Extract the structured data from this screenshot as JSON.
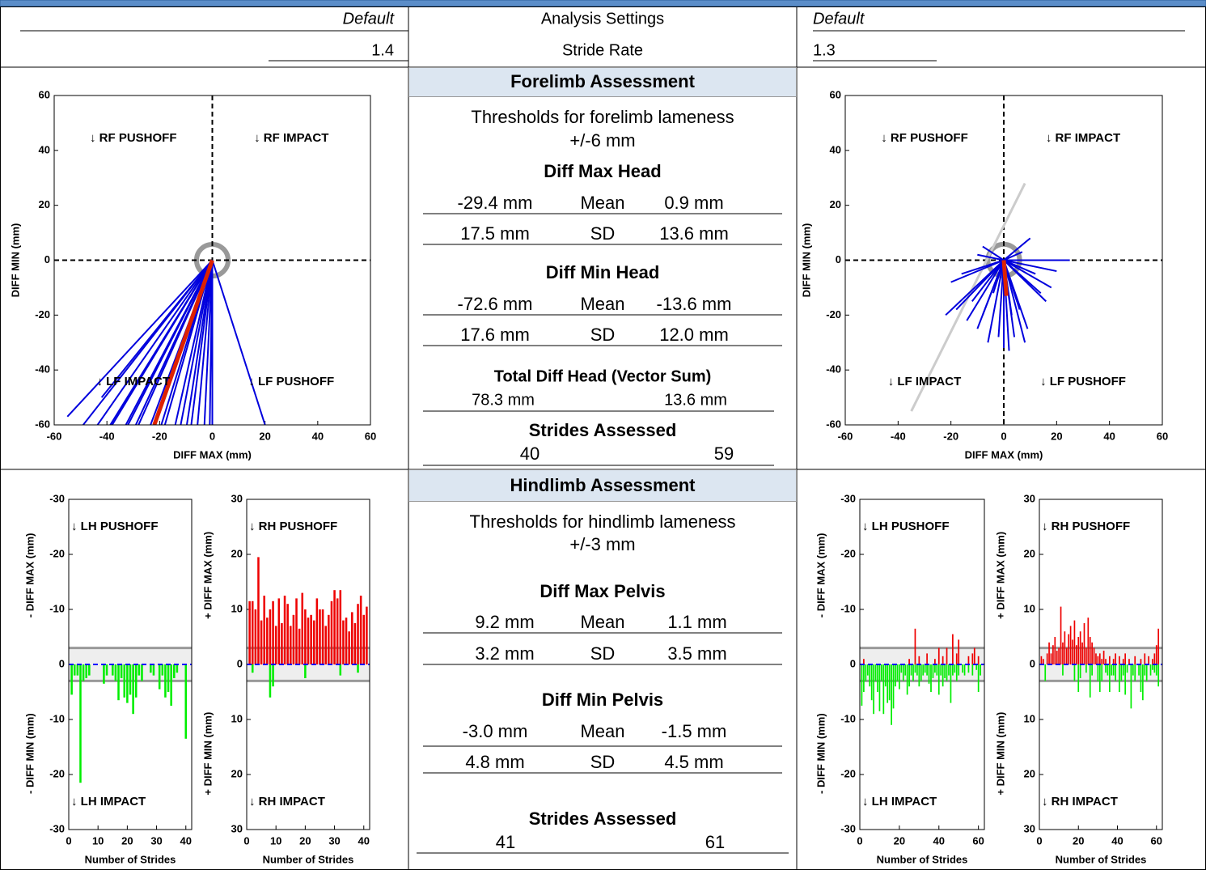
{
  "header": {
    "left": {
      "mode": "Default",
      "value": "1.4"
    },
    "center": {
      "title": "Analysis Settings",
      "label": "Stride Rate"
    },
    "right": {
      "mode": "Default",
      "value": "1.3"
    }
  },
  "forelimb": {
    "title": "Forelimb Assessment",
    "threshold": "Thresholds for forelimb lameness",
    "threshold_value": "+/-6 mm",
    "sections": [
      {
        "title": "Diff Max Head",
        "rows": [
          [
            "-29.4 mm",
            "Mean",
            "0.9 mm"
          ],
          [
            "17.5 mm",
            "SD",
            "13.6 mm"
          ]
        ]
      },
      {
        "title": "Diff Min Head",
        "rows": [
          [
            "-72.6 mm",
            "Mean",
            "-13.6 mm"
          ],
          [
            "17.6 mm",
            "SD",
            "12.0 mm"
          ]
        ]
      }
    ],
    "total": {
      "title": "Total Diff Head (Vector Sum)",
      "left": "78.3 mm",
      "right": "13.6 mm"
    },
    "strides": {
      "title": "Strides Assessed",
      "left": 40,
      "right": 59
    }
  },
  "hindlimb": {
    "title": "Hindlimb Assessment",
    "threshold": "Thresholds for hindlimb lameness",
    "threshold_value": "+/-3 mm",
    "sections": [
      {
        "title": "Diff Max Pelvis",
        "rows": [
          [
            "9.2 mm",
            "Mean",
            "1.1 mm"
          ],
          [
            "3.2 mm",
            "SD",
            "3.5 mm"
          ]
        ]
      },
      {
        "title": "Diff Min Pelvis",
        "rows": [
          [
            "-3.0 mm",
            "Mean",
            "-1.5 mm"
          ],
          [
            "4.8 mm",
            "SD",
            "4.5 mm"
          ]
        ]
      }
    ],
    "strides": {
      "title": "Strides Assessed",
      "left": 41,
      "right": 61
    }
  },
  "chart_data": [
    {
      "type": "vector",
      "xlabel": "DIFF MAX (mm)",
      "ylabel": "DIFF MIN (mm)",
      "xlim": [
        -60,
        60
      ],
      "ylim": [
        -60,
        60
      ],
      "xticks": [
        -60,
        -40,
        -20,
        0,
        20,
        40,
        60
      ],
      "yticks": [
        -60,
        -40,
        -20,
        0,
        20,
        40,
        60
      ],
      "threshold": 6,
      "annotations": [
        "↓ RF PUSHOFF",
        "↓ RF IMPACT",
        "↓ LF IMPACT",
        "↓ LF PUSHOFF"
      ],
      "series": [
        {
          "mode": "vectors",
          "color": "#0000dd",
          "x": [
            -55,
            -49,
            -45,
            -42,
            -40,
            -38,
            -35,
            -32,
            -30,
            -28,
            -25,
            -22,
            -20,
            -18,
            -15,
            -12,
            -10,
            -8,
            -6,
            -3,
            -1,
            0,
            20
          ],
          "y": [
            -57,
            -60,
            -62,
            -50,
            -62,
            -60,
            -64,
            -60,
            -62,
            -60,
            -64,
            -60,
            -62,
            -60,
            -64,
            -60,
            -62,
            -60,
            -64,
            -60,
            -62,
            -60,
            -60
          ]
        },
        {
          "mode": "mean",
          "color": "#dd2200",
          "x": [
            -22
          ],
          "y": [
            -60
          ]
        }
      ]
    },
    {
      "type": "vector",
      "xlabel": "DIFF MAX (mm)",
      "ylabel": "DIFF MIN (mm)",
      "xlim": [
        -60,
        60
      ],
      "ylim": [
        -60,
        60
      ],
      "xticks": [
        -60,
        -40,
        -20,
        0,
        20,
        40,
        60
      ],
      "yticks": [
        -60,
        -40,
        -20,
        0,
        20,
        40,
        60
      ],
      "threshold": 6,
      "annotations": [
        "↓ RF PUSHOFF",
        "↓ RF IMPACT",
        "↓ LF IMPACT",
        "↓ LF PUSHOFF"
      ],
      "series": [
        {
          "mode": "line",
          "color": "#cccccc",
          "x": [
            -35,
            8
          ],
          "y": [
            -55,
            28
          ]
        },
        {
          "mode": "vectors",
          "color": "#0000dd",
          "x": [
            10,
            -8,
            7,
            22,
            25,
            -20,
            18,
            16,
            -18,
            -14,
            -10,
            -6,
            2,
            0,
            4,
            8,
            -12,
            -16,
            12,
            6,
            -4,
            3,
            -8,
            -2,
            14,
            9,
            -10,
            20,
            -22,
            5
          ],
          "y": [
            8,
            5,
            3,
            0,
            0,
            -8,
            -10,
            -15,
            -18,
            -22,
            -25,
            -30,
            -33,
            -32,
            -28,
            -30,
            -15,
            -5,
            -5,
            -18,
            -12,
            -20,
            -20,
            -28,
            -12,
            -25,
            2,
            -4,
            -20,
            -15
          ]
        },
        {
          "mode": "mean",
          "color": "#dd2200",
          "x": [
            1
          ],
          "y": [
            -13
          ]
        }
      ]
    },
    {
      "type": "bar",
      "xlabel": "Number of Strides",
      "ylabel_top": "- DIFF MAX (mm)",
      "ylabel_bottom": "- DIFF MIN (mm)",
      "annotations": [
        "↓ LH PUSHOFF",
        "↓ LH IMPACT"
      ],
      "threshold": 3,
      "xlim": [
        0,
        42
      ],
      "xticks": [
        0,
        10,
        20,
        30,
        40
      ],
      "ylim": [
        -30,
        30
      ],
      "yticks": [
        {
          "value": 30,
          "label": "-30"
        },
        {
          "value": 20,
          "label": "-20"
        },
        {
          "value": 10,
          "label": "-10"
        },
        0,
        -10,
        -20,
        -30
      ],
      "x": [
        1,
        2,
        3,
        4,
        5,
        6,
        7,
        8,
        9,
        10,
        11,
        12,
        13,
        14,
        15,
        16,
        17,
        18,
        19,
        20,
        21,
        22,
        23,
        24,
        25,
        26,
        27,
        28,
        29,
        30,
        31,
        32,
        33,
        34,
        35,
        36,
        37,
        38,
        39,
        40,
        41
      ],
      "series": [
        {
          "color": "#00ee00",
          "values": [
            -5.5,
            -2,
            -2,
            -21.5,
            -3,
            -2.5,
            -2,
            null,
            null,
            null,
            null,
            -3.5,
            -2,
            null,
            -2,
            -3,
            -6.5,
            -2.5,
            -6,
            -7,
            -5.5,
            -9,
            -6,
            -2,
            -3,
            null,
            null,
            -1.5,
            -2,
            null,
            -4.5,
            -2,
            -6,
            -5,
            -7.5,
            -2.5,
            -1.5,
            null,
            null,
            -13.5,
            null
          ]
        }
      ]
    },
    {
      "type": "bar",
      "xlabel": "Number of Strides",
      "ylabel_top": "+ DIFF MAX (mm)",
      "ylabel_bottom": "+ DIFF MIN (mm)",
      "annotations": [
        "↓ RH PUSHOFF",
        "↓ RH IMPACT"
      ],
      "threshold": 3,
      "xlim": [
        0,
        42
      ],
      "xticks": [
        0,
        10,
        20,
        30,
        40
      ],
      "ylim": [
        -30,
        30
      ],
      "yticks": [
        30,
        20,
        10,
        0,
        {
          "value": -10,
          "label": "10"
        },
        {
          "value": -20,
          "label": "20"
        },
        {
          "value": -30,
          "label": "30"
        }
      ],
      "x": [
        1,
        2,
        3,
        4,
        5,
        6,
        7,
        8,
        9,
        10,
        11,
        12,
        13,
        14,
        15,
        16,
        17,
        18,
        19,
        20,
        21,
        22,
        23,
        24,
        25,
        26,
        27,
        28,
        29,
        30,
        31,
        32,
        33,
        34,
        35,
        36,
        37,
        38,
        39,
        40,
        41
      ],
      "series": [
        {
          "color": "#ee0000",
          "values": [
            11.5,
            11.5,
            10,
            19.5,
            8,
            12.5,
            8.5,
            10,
            11.5,
            7,
            12,
            7.5,
            12.5,
            11,
            7,
            9,
            12,
            6.5,
            13,
            10,
            8.5,
            9,
            8,
            12,
            10,
            10,
            7,
            9,
            11.5,
            13.5,
            12,
            13.5,
            8,
            8.5,
            6,
            9.5,
            7.5,
            11,
            12.5,
            9,
            10.5
          ]
        },
        {
          "color": "#00ee00",
          "values": [
            null,
            -1.5,
            null,
            null,
            null,
            null,
            null,
            -6,
            -4,
            null,
            null,
            null,
            null,
            null,
            null,
            null,
            null,
            null,
            null,
            -2.5,
            null,
            null,
            null,
            null,
            null,
            null,
            null,
            null,
            null,
            null,
            null,
            -2,
            null,
            null,
            null,
            null,
            null,
            -1.5,
            null,
            null,
            null
          ]
        }
      ]
    },
    {
      "type": "bar",
      "xlabel": "Number of Strides",
      "ylabel_top": "- DIFF MAX (mm)",
      "ylabel_bottom": "- DIFF MIN (mm)",
      "annotations": [
        "↓ LH PUSHOFF",
        "↓ LH IMPACT"
      ],
      "threshold": 3,
      "xlim": [
        0,
        63
      ],
      "xticks": [
        0,
        20,
        40,
        60
      ],
      "ylim": [
        -30,
        30
      ],
      "yticks": [
        {
          "value": 30,
          "label": "-30"
        },
        {
          "value": 20,
          "label": "-20"
        },
        {
          "value": 10,
          "label": "-10"
        },
        0,
        -10,
        -20,
        -30
      ],
      "x": [
        1,
        2,
        3,
        4,
        5,
        6,
        7,
        8,
        9,
        10,
        11,
        12,
        13,
        14,
        15,
        16,
        17,
        18,
        19,
        20,
        21,
        22,
        23,
        24,
        25,
        26,
        27,
        28,
        29,
        30,
        31,
        32,
        33,
        34,
        35,
        36,
        37,
        38,
        39,
        40,
        41,
        42,
        43,
        44,
        45,
        46,
        47,
        48,
        49,
        50,
        51,
        52,
        53,
        54,
        55,
        56,
        57,
        58,
        59,
        60,
        61
      ],
      "series": [
        {
          "color": "#ee0000",
          "values": [
            null,
            1,
            null,
            null,
            null,
            null,
            null,
            null,
            null,
            null,
            null,
            null,
            null,
            null,
            null,
            null,
            null,
            null,
            null,
            null,
            null,
            null,
            null,
            null,
            1,
            null,
            null,
            6.5,
            null,
            1.5,
            null,
            null,
            null,
            2,
            null,
            null,
            null,
            1,
            null,
            3,
            null,
            1.5,
            null,
            3,
            null,
            null,
            5.5,
            null,
            2,
            4.5,
            null,
            null,
            null,
            null,
            1.5,
            null,
            2,
            3,
            null,
            1.5,
            null
          ]
        },
        {
          "color": "#00ee00",
          "values": [
            -7.5,
            -5,
            -3,
            -2,
            -4,
            -6.5,
            -9,
            -3,
            -5,
            -8.5,
            -3,
            -9,
            -4,
            -7,
            -6.5,
            -11,
            -8,
            -4,
            -3,
            -4.5,
            -1.5,
            -3,
            -2,
            -5.5,
            -4,
            -2,
            -3,
            -1.5,
            -2,
            -4,
            -3,
            -2,
            -1.5,
            -2,
            -3.5,
            -5,
            -2.5,
            -1.5,
            -2,
            -5.5,
            -2,
            -4,
            -2.5,
            -3,
            -2,
            -7,
            -2,
            -1.5,
            -3,
            -2,
            null,
            -1.5,
            -2,
            null,
            -1.5,
            null,
            -2,
            null,
            -1,
            -5,
            -2
          ]
        }
      ]
    },
    {
      "type": "bar",
      "xlabel": "Number of Strides",
      "ylabel_top": "+ DIFF MAX (mm)",
      "ylabel_bottom": "+ DIFF MIN (mm)",
      "annotations": [
        "↓ RH PUSHOFF",
        "↓ RH IMPACT"
      ],
      "threshold": 3,
      "xlim": [
        0,
        63
      ],
      "xticks": [
        0,
        20,
        40,
        60
      ],
      "ylim": [
        -30,
        30
      ],
      "yticks": [
        30,
        20,
        10,
        0,
        {
          "value": -10,
          "label": "10"
        },
        {
          "value": -20,
          "label": "20"
        },
        {
          "value": -30,
          "label": "30"
        }
      ],
      "x": [
        1,
        2,
        3,
        4,
        5,
        6,
        7,
        8,
        9,
        10,
        11,
        12,
        13,
        14,
        15,
        16,
        17,
        18,
        19,
        20,
        21,
        22,
        23,
        24,
        25,
        26,
        27,
        28,
        29,
        30,
        31,
        32,
        33,
        34,
        35,
        36,
        37,
        38,
        39,
        40,
        41,
        42,
        43,
        44,
        45,
        46,
        47,
        48,
        49,
        50,
        51,
        52,
        53,
        54,
        55,
        56,
        57,
        58,
        59,
        60,
        61
      ],
      "series": [
        {
          "color": "#ee0000",
          "values": [
            1.5,
            1,
            null,
            2,
            4,
            2,
            3.5,
            5,
            2.5,
            3,
            10.5,
            4,
            6,
            3,
            5.5,
            7,
            4.5,
            8,
            3.5,
            5,
            6,
            4,
            7.5,
            3,
            8.5,
            5,
            4,
            3,
            2,
            1.5,
            2,
            1,
            2.5,
            1,
            null,
            1.5,
            null,
            1,
            2,
            null,
            1.5,
            null,
            1,
            2,
            null,
            1,
            null,
            null,
            1.5,
            null,
            null,
            1,
            null,
            2,
            null,
            1.5,
            null,
            1,
            2,
            3.5,
            6.5
          ]
        },
        {
          "color": "#00ee00",
          "values": [
            null,
            null,
            -3,
            null,
            null,
            null,
            null,
            null,
            null,
            null,
            null,
            -2,
            null,
            null,
            null,
            null,
            null,
            -3,
            null,
            -5,
            -2.5,
            null,
            null,
            -1.5,
            null,
            -6,
            -2,
            null,
            null,
            -3,
            -5,
            -3,
            null,
            -1.5,
            -2,
            -5,
            -2,
            -2,
            -3,
            null,
            -5,
            -3,
            -2,
            -5.5,
            -1.5,
            null,
            -8,
            -2,
            -3,
            null,
            -2,
            -5,
            -6.5,
            -2,
            -3,
            null,
            -2,
            -1,
            -1.5,
            -2,
            -4
          ]
        }
      ]
    }
  ]
}
